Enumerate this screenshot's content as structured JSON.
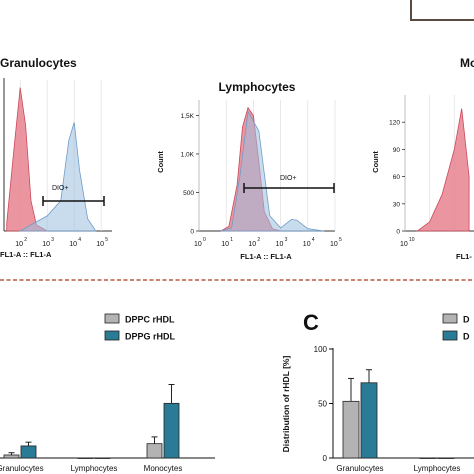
{
  "chart_data": [
    {
      "type": "area",
      "panel": "",
      "title": "Granulocytes",
      "xlabel": "FL1-A :: FL1-A",
      "ylabel": "",
      "gate_label": "DIO+",
      "x_ticks": [
        "2",
        "10",
        "3",
        "10",
        "4",
        "10",
        "5",
        "10"
      ],
      "y_ticks": [],
      "x_scale": "log",
      "series": [
        {
          "color": "#e8828f",
          "x": [
            1.5,
            1.8,
            2.0,
            2.2,
            2.4,
            2.6,
            3.0
          ],
          "y": [
            0.05,
            0.6,
            0.95,
            0.7,
            0.2,
            0.04,
            0.0
          ]
        },
        {
          "color": "#9bbfe0",
          "x": [
            2.0,
            2.5,
            3.0,
            3.5,
            3.8,
            4.0,
            4.2,
            4.5,
            4.8
          ],
          "y": [
            0.0,
            0.05,
            0.1,
            0.2,
            0.6,
            0.72,
            0.4,
            0.08,
            0.0
          ]
        }
      ]
    },
    {
      "type": "area",
      "panel": "",
      "title": "Lymphocytes",
      "xlabel": "FL1-A :: FL1-A",
      "ylabel": "Count",
      "gate_label": "DIO+",
      "x_ticks": [
        "0",
        "10",
        "1",
        "10",
        "2",
        "10",
        "3",
        "10",
        "4",
        "10",
        "5",
        "10"
      ],
      "y_ticks": [
        "0",
        "500",
        "1,0K",
        "1,5K"
      ],
      "ylim": [
        0,
        1700
      ],
      "x_scale": "log",
      "series": [
        {
          "color": "#e8828f",
          "x": [
            0.8,
            1.1,
            1.4,
            1.6,
            1.8,
            2.0,
            2.2,
            2.4,
            2.7,
            3.0
          ],
          "y": [
            0,
            60,
            600,
            1350,
            1600,
            1500,
            900,
            250,
            30,
            0
          ]
        },
        {
          "color": "#9bbfe0",
          "x": [
            0.8,
            1.2,
            1.5,
            1.8,
            2.2,
            2.6,
            3.0,
            3.4,
            3.6,
            4.0,
            4.6
          ],
          "y": [
            0,
            40,
            700,
            1550,
            1300,
            200,
            40,
            150,
            140,
            30,
            0
          ]
        }
      ]
    },
    {
      "type": "area",
      "panel": "",
      "title": "Mo",
      "xlabel": "FL1-",
      "ylabel": "Count",
      "gate_label": "",
      "x_ticks": [
        "10",
        "10"
      ],
      "y_ticks": [
        "0",
        "30",
        "60",
        "90",
        "120"
      ],
      "ylim": [
        0,
        150
      ],
      "x_scale": "log",
      "series": [
        {
          "color": "#e8828f",
          "x": [
            0.5,
            1.0,
            1.5,
            2.0,
            2.3,
            2.6
          ],
          "y": [
            0,
            10,
            40,
            90,
            135,
            60
          ]
        }
      ]
    },
    {
      "type": "bar",
      "panel": "",
      "title": "",
      "xlabel": "",
      "ylabel": "",
      "categories": [
        "Granulocytes",
        "Lymphocytes",
        "Monocytes"
      ],
      "series": [
        {
          "name": "DPPC rHDL",
          "color": "#b3b3b3",
          "values": [
            0.8,
            0,
            3.8
          ],
          "errors": [
            0.6,
            0,
            1.8
          ]
        },
        {
          "name": "DPPG rHDL",
          "color": "#2a7b95",
          "values": [
            3.2,
            0,
            14.5
          ],
          "errors": [
            1.0,
            0,
            5.0
          ]
        }
      ],
      "ylim": [
        0,
        26
      ]
    },
    {
      "type": "bar",
      "panel": "C",
      "title": "",
      "xlabel": "",
      "ylabel": "Distribution of rHDL [%]",
      "categories": [
        "Granulocytes",
        "Lymphocytes"
      ],
      "y_ticks": [
        "0",
        "50",
        "100"
      ],
      "ylim": [
        0,
        100
      ],
      "series": [
        {
          "name": "D",
          "color": "#b3b3b3",
          "values": [
            52,
            0
          ],
          "errors": [
            21,
            0
          ]
        },
        {
          "name": "D",
          "color": "#2a7b95",
          "values": [
            69,
            0
          ],
          "errors": [
            12,
            0
          ]
        }
      ]
    }
  ],
  "colors": {
    "red_fill": "#e8828f",
    "blue_fill": "#9bbfe0",
    "gray_bar": "#b3b3b3",
    "teal_bar": "#2a7b95",
    "divider": "#b8563c"
  }
}
